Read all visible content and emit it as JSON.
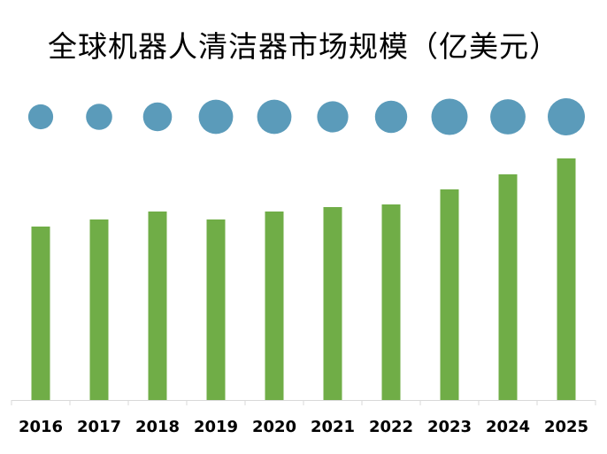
{
  "chart_data": {
    "type": "bar",
    "title": "全球机器人清洁器市场规模（亿美元）",
    "xlabel": "",
    "ylabel": "",
    "categories": [
      "2016",
      "2017",
      "2018",
      "2019",
      "2020",
      "2021",
      "2022",
      "2023",
      "2024",
      "2025"
    ],
    "series": [
      {
        "values": [
          196,
          204,
          213,
          204,
          213,
          218,
          221,
          238,
          255,
          273
        ]
      },
      {
        "values": [
          9,
          10,
          12,
          17,
          17,
          14,
          15,
          19,
          18,
          20
        ]
      }
    ],
    "ylim": [
      0,
      300
    ],
    "grid": false,
    "legend": "none",
    "colors": {
      "bar": "#70ad47",
      "bubble": "#5b9bba",
      "axis": "#d9d9d9"
    }
  }
}
